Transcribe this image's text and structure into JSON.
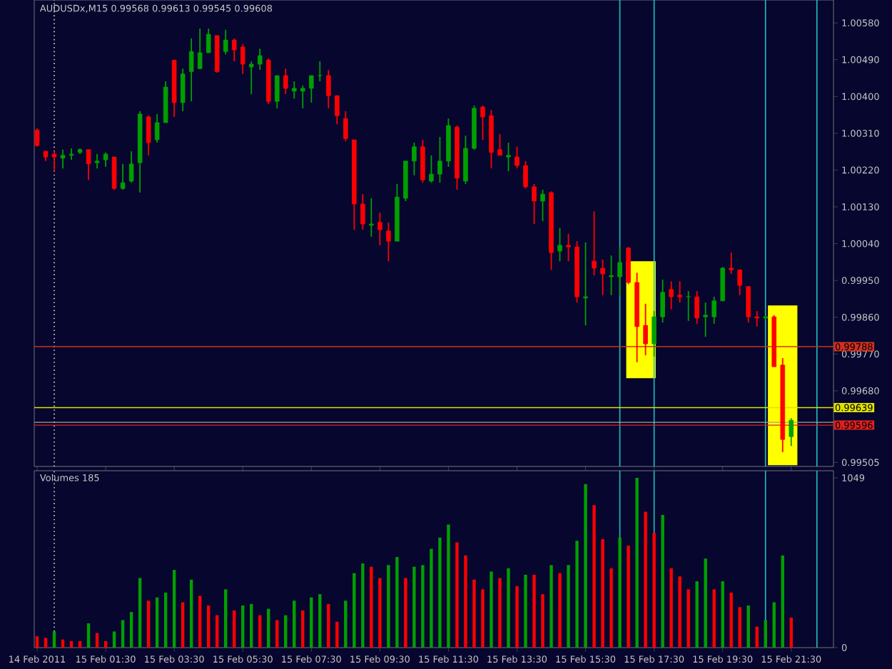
{
  "chart_data": [
    {
      "type": "candlestick",
      "title": "AUDUSDx,M15 0.99568 0.99613 0.99545 0.99608",
      "x": [
        "2011-02-14T23:30",
        "2011-02-14T23:45",
        "2011-02-15T00:00",
        "2011-02-15T00:15",
        "2011-02-15T00:30",
        "2011-02-15T00:45",
        "2011-02-15T01:00",
        "2011-02-15T01:15",
        "2011-02-15T01:30",
        "2011-02-15T01:45",
        "2011-02-15T02:00",
        "2011-02-15T02:15",
        "2011-02-15T02:30",
        "2011-02-15T02:45",
        "2011-02-15T03:00",
        "2011-02-15T03:15",
        "2011-02-15T03:30",
        "2011-02-15T03:45",
        "2011-02-15T04:00",
        "2011-02-15T04:15",
        "2011-02-15T04:30",
        "2011-02-15T04:45",
        "2011-02-15T05:00",
        "2011-02-15T05:15",
        "2011-02-15T05:30",
        "2011-02-15T05:45",
        "2011-02-15T06:00",
        "2011-02-15T06:15",
        "2011-02-15T06:30",
        "2011-02-15T06:45",
        "2011-02-15T07:00",
        "2011-02-15T07:15",
        "2011-02-15T07:30",
        "2011-02-15T07:45",
        "2011-02-15T08:00",
        "2011-02-15T08:15",
        "2011-02-15T08:30",
        "2011-02-15T08:45",
        "2011-02-15T09:00",
        "2011-02-15T09:15",
        "2011-02-15T09:30",
        "2011-02-15T09:45",
        "2011-02-15T10:00",
        "2011-02-15T10:15",
        "2011-02-15T10:30",
        "2011-02-15T10:45",
        "2011-02-15T11:00",
        "2011-02-15T11:15",
        "2011-02-15T11:30",
        "2011-02-15T11:45",
        "2011-02-15T12:00",
        "2011-02-15T12:15",
        "2011-02-15T12:30",
        "2011-02-15T12:45",
        "2011-02-15T13:00",
        "2011-02-15T13:15",
        "2011-02-15T13:30",
        "2011-02-15T13:45",
        "2011-02-15T14:00",
        "2011-02-15T14:15",
        "2011-02-15T14:30",
        "2011-02-15T14:45",
        "2011-02-15T15:00",
        "2011-02-15T15:15",
        "2011-02-15T15:30",
        "2011-02-15T15:45",
        "2011-02-15T16:00",
        "2011-02-15T16:15",
        "2011-02-15T16:30",
        "2011-02-15T16:45",
        "2011-02-15T17:00",
        "2011-02-15T17:15",
        "2011-02-15T17:30",
        "2011-02-15T17:45",
        "2011-02-15T18:00",
        "2011-02-15T18:15",
        "2011-02-15T18:30",
        "2011-02-15T18:45",
        "2011-02-15T19:00",
        "2011-02-15T19:15",
        "2011-02-15T19:30",
        "2011-02-15T19:45",
        "2011-02-15T20:00",
        "2011-02-15T20:15",
        "2011-02-15T20:30",
        "2011-02-15T20:45",
        "2011-02-15T21:00",
        "2011-02-15T21:15",
        "2011-02-15T21:30"
      ],
      "ohlc": [
        [
          1.00318,
          1.00322,
          1.00277,
          1.0028
        ],
        [
          1.00266,
          1.00266,
          1.00242,
          1.00252
        ],
        [
          1.00259,
          1.00266,
          1.00217,
          1.00252
        ],
        [
          1.00249,
          1.0027,
          1.00224,
          1.00256
        ],
        [
          1.00256,
          1.00273,
          1.00245,
          1.00259
        ],
        [
          1.00263,
          1.00273,
          1.00259,
          1.0027
        ],
        [
          1.0027,
          1.0027,
          1.00196,
          1.00235
        ],
        [
          1.00238,
          1.00259,
          1.00224,
          1.00242
        ],
        [
          1.00245,
          1.00263,
          1.00228,
          1.00259
        ],
        [
          1.00252,
          1.00252,
          1.00172,
          1.00175
        ],
        [
          1.00175,
          1.00235,
          1.00172,
          1.00189
        ],
        [
          1.00193,
          1.00266,
          1.00189,
          1.00235
        ],
        [
          1.00238,
          1.00364,
          1.00165,
          1.00357
        ],
        [
          1.0035,
          1.00353,
          1.00256,
          1.00287
        ],
        [
          1.00294,
          1.00357,
          1.00287,
          1.00336
        ],
        [
          1.00336,
          1.00437,
          1.00336,
          1.00423
        ],
        [
          1.00489,
          1.00489,
          1.0035,
          1.00385
        ],
        [
          1.00385,
          1.00468,
          1.00364,
          1.00455
        ],
        [
          1.00461,
          1.00542,
          1.00388,
          1.0051
        ],
        [
          1.00468,
          1.00566,
          1.00468,
          1.00507
        ],
        [
          1.00507,
          1.00566,
          1.00507,
          1.00552
        ],
        [
          1.00549,
          1.00549,
          1.00458,
          1.00461
        ],
        [
          1.0051,
          1.00563,
          1.00503,
          1.00538
        ],
        [
          1.00538,
          1.00542,
          1.00486,
          1.00514
        ],
        [
          1.00521,
          1.00528,
          1.00455,
          1.00479
        ],
        [
          1.00472,
          1.00486,
          1.00406,
          1.00479
        ],
        [
          1.00479,
          1.00517,
          1.00465,
          1.005
        ],
        [
          1.00489,
          1.00493,
          1.00381,
          1.00388
        ],
        [
          1.00388,
          1.00451,
          1.00371,
          1.00451
        ],
        [
          1.00451,
          1.00468,
          1.00406,
          1.0042
        ],
        [
          1.00413,
          1.00437,
          1.00395,
          1.0042
        ],
        [
          1.00413,
          1.00427,
          1.00371,
          1.0042
        ],
        [
          1.0042,
          1.00451,
          1.00385,
          1.00451
        ],
        [
          1.00451,
          1.00486,
          1.00437,
          1.00451
        ],
        [
          1.00451,
          1.00465,
          1.00371,
          1.00402
        ],
        [
          1.00402,
          1.00402,
          1.00332,
          1.00353
        ],
        [
          1.00346,
          1.00364,
          1.0029,
          1.00297
        ],
        [
          1.00294,
          1.00294,
          1.00074,
          1.00137
        ],
        [
          1.00137,
          1.00161,
          1.00074,
          1.00088
        ],
        [
          1.00085,
          1.00151,
          1.00057,
          1.00088
        ],
        [
          1.00092,
          1.00116,
          1.00036,
          1.00074
        ],
        [
          1.00071,
          1.00092,
          0.99997,
          1.00046
        ],
        [
          1.00046,
          1.00186,
          1.00046,
          1.00154
        ],
        [
          1.00151,
          1.00242,
          1.00144,
          1.00242
        ],
        [
          1.00242,
          1.00287,
          1.00207,
          1.00277
        ],
        [
          1.00277,
          1.00294,
          1.00189,
          1.00196
        ],
        [
          1.00193,
          1.00256,
          1.00189,
          1.0021
        ],
        [
          1.0021,
          1.00301,
          1.00189,
          1.00242
        ],
        [
          1.00242,
          1.00346,
          1.00228,
          1.00329
        ],
        [
          1.00325,
          1.00329,
          1.00172,
          1.002
        ],
        [
          1.00193,
          1.00304,
          1.00186,
          1.00273
        ],
        [
          1.00273,
          1.00378,
          1.0027,
          1.00371
        ],
        [
          1.00374,
          1.00378,
          1.00294,
          1.0035
        ],
        [
          1.00353,
          1.00367,
          1.00224,
          1.00263
        ],
        [
          1.0027,
          1.00308,
          1.00256,
          1.00256
        ],
        [
          1.00252,
          1.00287,
          1.00217,
          1.00256
        ],
        [
          1.00252,
          1.00277,
          1.00224,
          1.00231
        ],
        [
          1.00231,
          1.00242,
          1.00175,
          1.00179
        ],
        [
          1.00179,
          1.00186,
          1.00088,
          1.00144
        ],
        [
          1.00144,
          1.00172,
          1.00095,
          1.00161
        ],
        [
          1.00165,
          1.00168,
          0.99976,
          1.00018
        ],
        [
          1.00022,
          1.00078,
          0.99997,
          1.00036
        ],
        [
          1.00036,
          1.00064,
          0.99997,
          1.00032
        ],
        [
          1.00032,
          1.00046,
          0.99896,
          0.9991
        ],
        [
          0.99907,
          1.00043,
          0.9984,
          0.9991
        ],
        [
          0.99997,
          1.00119,
          0.99962,
          0.9998
        ],
        [
          0.9998,
          1.00001,
          0.99914,
          0.99966
        ],
        [
          0.99959,
          1.00011,
          0.99914,
          0.99962
        ],
        [
          0.99959,
          1.00032,
          0.99914,
          0.99994
        ],
        [
          1.00029,
          1.00032,
          0.99941,
          0.99945
        ],
        [
          0.99945,
          0.99969,
          0.9975,
          0.99837
        ],
        [
          0.9984,
          0.99893,
          0.99767,
          0.99795
        ],
        [
          0.99795,
          0.99875,
          0.99764,
          0.99861
        ],
        [
          0.99861,
          0.99952,
          0.99847,
          0.99921
        ],
        [
          0.99928,
          0.99948,
          0.99879,
          0.9991
        ],
        [
          0.99914,
          0.99948,
          0.99896,
          0.9991
        ],
        [
          0.9991,
          0.99924,
          0.99851,
          0.9991
        ],
        [
          0.9991,
          0.99924,
          0.99844,
          0.99858
        ],
        [
          0.99861,
          0.99896,
          0.99812,
          0.99865
        ],
        [
          0.99861,
          0.9991,
          0.99844,
          0.999
        ],
        [
          0.999,
          0.99983,
          0.999,
          0.9998
        ],
        [
          0.9998,
          1.00018,
          0.99966,
          0.99976
        ],
        [
          0.99976,
          0.99976,
          0.99914,
          0.99938
        ],
        [
          0.99935,
          0.99935,
          0.99847,
          0.99861
        ],
        [
          0.99861,
          0.99875,
          0.99837,
          0.99858
        ],
        [
          0.99858,
          0.99865,
          0.99854,
          0.99861
        ],
        [
          0.99861,
          0.99865,
          0.99739,
          0.99739
        ],
        [
          0.99743,
          0.9976,
          0.9953,
          0.99561
        ],
        [
          0.99568,
          0.99613,
          0.99545,
          0.99608
        ]
      ],
      "colors": [
        "#ff0000",
        "#ff0000",
        "#ff0000",
        "#00a000",
        "#00a000",
        "#00a000",
        "#ff0000",
        "#00a000",
        "#00a000",
        "#ff0000",
        "#00a000",
        "#00a000",
        "#00a000",
        "#ff0000",
        "#00a000",
        "#00a000",
        "#ff0000",
        "#00a000",
        "#00a000",
        "#00a000",
        "#00a000",
        "#ff0000",
        "#00a000",
        "#ff0000",
        "#ff0000",
        "#00a000",
        "#00a000",
        "#ff0000",
        "#00a000",
        "#ff0000",
        "#00a000",
        "#00a000",
        "#00a000",
        "#00a000",
        "#ff0000",
        "#ff0000",
        "#ff0000",
        "#ff0000",
        "#ff0000",
        "#00a000",
        "#ff0000",
        "#ff0000",
        "#00a000",
        "#00a000",
        "#00a000",
        "#ff0000",
        "#00a000",
        "#00a000",
        "#00a000",
        "#ff0000",
        "#00a000",
        "#00a000",
        "#ff0000",
        "#ff0000",
        "#ff0000",
        "#00a000",
        "#ff0000",
        "#ff0000",
        "#ff0000",
        "#00a000",
        "#ff0000",
        "#00a000",
        "#ff0000",
        "#ff0000",
        "#00a000",
        "#ff0000",
        "#ff0000",
        "#00a000",
        "#00a000",
        "#ff0000",
        "#ff0000",
        "#ff0000",
        "#00a000",
        "#00a000",
        "#ff0000",
        "#ff0000",
        "#00a000",
        "#ff0000",
        "#00a000",
        "#00a000",
        "#00a000",
        "#ff0000",
        "#ff0000",
        "#ff0000",
        "#ff0000",
        "#00a000",
        "#ff0000",
        "#ff0000",
        "#00a000"
      ],
      "series": [
        {
          "type": "bar",
          "x": [
            "2011-02-15T17:07",
            "2011-02-15T21:15"
          ],
          "base": [
            0.99711,
            0.99498
          ],
          "values": [
            0.00286,
            0.00391
          ],
          "color": "#ffff00"
        }
      ],
      "xlim": [
        "2011-02-14T23:25",
        "2011-02-15T22:44"
      ],
      "xticks": [
        {
          "value": "2011-02-14T23:30",
          "label": null
        },
        {
          "value": "2011-02-15T01:30",
          "label": null
        },
        {
          "value": "2011-02-15T03:30",
          "label": null
        },
        {
          "value": "2011-02-15T05:30",
          "label": null
        },
        {
          "value": "2011-02-15T07:30",
          "label": null
        },
        {
          "value": "2011-02-15T09:30",
          "label": null
        },
        {
          "value": "2011-02-15T11:30",
          "label": null
        },
        {
          "value": "2011-02-15T13:30",
          "label": null
        },
        {
          "value": "2011-02-15T15:30",
          "label": null
        },
        {
          "value": "2011-02-15T17:30",
          "label": null
        },
        {
          "value": "2011-02-15T19:30",
          "label": null
        },
        {
          "value": "2011-02-15T21:30",
          "label": null
        }
      ],
      "ylim": [
        0.99495,
        1.00636
      ],
      "yticks": [
        {
          "value": 1.0058,
          "label": "1.00580"
        },
        {
          "value": 1.0049,
          "label": "1.00490"
        },
        {
          "value": 1.004,
          "label": "1.00400"
        },
        {
          "value": 1.0031,
          "label": "1.00310"
        },
        {
          "value": 1.0022,
          "label": "1.00220"
        },
        {
          "value": 1.0013,
          "label": "1.00130"
        },
        {
          "value": 1.0004,
          "label": "1.00040"
        },
        {
          "value": 0.9995,
          "label": "0.99950"
        },
        {
          "value": 0.9986,
          "label": "0.99860"
        },
        {
          "value": 0.9977,
          "label": "0.99770"
        },
        {
          "value": 0.9968,
          "label": "0.99680"
        },
        0.99505
      ],
      "tick_labels": "y",
      "ref_lines": [
        {
          "axis": "x",
          "value": "2011-02-15T00:00",
          "color": "#e0e0c0",
          "line_style": "dotted"
        },
        {
          "axis": "x",
          "value": "2011-02-15T16:30",
          "color": "#20c0c0"
        },
        {
          "axis": "x",
          "value": "2011-02-15T17:30",
          "color": "#20c0c0"
        },
        {
          "axis": "x",
          "value": "2011-02-15T20:45",
          "color": "#20c0c0"
        },
        {
          "axis": "x",
          "value": "2011-02-15T22:15",
          "color": "#20c0c0"
        },
        {
          "axis": "y",
          "value": 0.99788,
          "label": "0.99788",
          "color": "#d03020"
        },
        {
          "axis": "y",
          "value": 0.99639,
          "label": "0.99639",
          "color": "#e0e000"
        },
        {
          "axis": "y",
          "value": 0.99603,
          "color": "#a0a0a0"
        },
        {
          "axis": "y",
          "value": 0.99596,
          "label": "0.99596",
          "color": "#e02020"
        }
      ]
    },
    {
      "type": "bar",
      "title": "Volumes 185",
      "x": [
        "2011-02-14T23:30",
        "2011-02-14T23:45",
        "2011-02-15T00:00",
        "2011-02-15T00:15",
        "2011-02-15T00:30",
        "2011-02-15T00:45",
        "2011-02-15T01:00",
        "2011-02-15T01:15",
        "2011-02-15T01:30",
        "2011-02-15T01:45",
        "2011-02-15T02:00",
        "2011-02-15T02:15",
        "2011-02-15T02:30",
        "2011-02-15T02:45",
        "2011-02-15T03:00",
        "2011-02-15T03:15",
        "2011-02-15T03:30",
        "2011-02-15T03:45",
        "2011-02-15T04:00",
        "2011-02-15T04:15",
        "2011-02-15T04:30",
        "2011-02-15T04:45",
        "2011-02-15T05:00",
        "2011-02-15T05:15",
        "2011-02-15T05:30",
        "2011-02-15T05:45",
        "2011-02-15T06:00",
        "2011-02-15T06:15",
        "2011-02-15T06:30",
        "2011-02-15T06:45",
        "2011-02-15T07:00",
        "2011-02-15T07:15",
        "2011-02-15T07:30",
        "2011-02-15T07:45",
        "2011-02-15T08:00",
        "2011-02-15T08:15",
        "2011-02-15T08:30",
        "2011-02-15T08:45",
        "2011-02-15T09:00",
        "2011-02-15T09:15",
        "2011-02-15T09:30",
        "2011-02-15T09:45",
        "2011-02-15T10:00",
        "2011-02-15T10:15",
        "2011-02-15T10:30",
        "2011-02-15T10:45",
        "2011-02-15T11:00",
        "2011-02-15T11:15",
        "2011-02-15T11:30",
        "2011-02-15T11:45",
        "2011-02-15T12:00",
        "2011-02-15T12:15",
        "2011-02-15T12:30",
        "2011-02-15T12:45",
        "2011-02-15T13:00",
        "2011-02-15T13:15",
        "2011-02-15T13:30",
        "2011-02-15T13:45",
        "2011-02-15T14:00",
        "2011-02-15T14:15",
        "2011-02-15T14:30",
        "2011-02-15T14:45",
        "2011-02-15T15:00",
        "2011-02-15T15:15",
        "2011-02-15T15:30",
        "2011-02-15T15:45",
        "2011-02-15T16:00",
        "2011-02-15T16:15",
        "2011-02-15T16:30",
        "2011-02-15T16:45",
        "2011-02-15T17:00",
        "2011-02-15T17:15",
        "2011-02-15T17:30",
        "2011-02-15T17:45",
        "2011-02-15T18:00",
        "2011-02-15T18:15",
        "2011-02-15T18:30",
        "2011-02-15T18:45",
        "2011-02-15T19:00",
        "2011-02-15T19:15",
        "2011-02-15T19:30",
        "2011-02-15T19:45",
        "2011-02-15T20:00",
        "2011-02-15T20:15",
        "2011-02-15T20:30",
        "2011-02-15T20:45",
        "2011-02-15T21:00",
        "2011-02-15T21:15",
        "2011-02-15T21:30"
      ],
      "values": [
        70,
        60,
        100,
        50,
        40,
        40,
        150,
        90,
        40,
        100,
        170,
        220,
        430,
        290,
        310,
        340,
        480,
        280,
        420,
        320,
        260,
        200,
        360,
        230,
        260,
        270,
        200,
        240,
        170,
        200,
        290,
        230,
        310,
        330,
        270,
        160,
        290,
        460,
        520,
        500,
        430,
        510,
        560,
        430,
        500,
        510,
        610,
        680,
        760,
        650,
        570,
        420,
        360,
        470,
        430,
        490,
        380,
        450,
        450,
        330,
        510,
        460,
        510,
        660,
        1010,
        880,
        670,
        490,
        680,
        630,
        1049,
        840,
        710,
        820,
        490,
        440,
        360,
        410,
        550,
        360,
        410,
        340,
        250,
        260,
        130,
        170,
        280,
        570,
        185
      ],
      "colors": [
        "#ff0000",
        "#ff0000",
        "#00a000",
        "#ff0000",
        "#ff0000",
        "#ff0000",
        "#00a000",
        "#ff0000",
        "#ff0000",
        "#00a000",
        "#00a000",
        "#00a000",
        "#00a000",
        "#ff0000",
        "#00a000",
        "#00a000",
        "#00a000",
        "#ff0000",
        "#00a000",
        "#ff0000",
        "#ff0000",
        "#ff0000",
        "#00a000",
        "#ff0000",
        "#00a000",
        "#00a000",
        "#ff0000",
        "#00a000",
        "#ff0000",
        "#00a000",
        "#00a000",
        "#ff0000",
        "#00a000",
        "#00a000",
        "#ff0000",
        "#ff0000",
        "#00a000",
        "#00a000",
        "#00a000",
        "#ff0000",
        "#ff0000",
        "#00a000",
        "#00a000",
        "#ff0000",
        "#00a000",
        "#00a000",
        "#00a000",
        "#00a000",
        "#00a000",
        "#ff0000",
        "#ff0000",
        "#ff0000",
        "#ff0000",
        "#00a000",
        "#ff0000",
        "#00a000",
        "#ff0000",
        "#00a000",
        "#ff0000",
        "#ff0000",
        "#00a000",
        "#ff0000",
        "#00a000",
        "#00a000",
        "#00a000",
        "#ff0000",
        "#ff0000",
        "#ff0000",
        "#00a000",
        "#ff0000",
        "#00a000",
        "#ff0000",
        "#ff0000",
        "#00a000",
        "#ff0000",
        "#ff0000",
        "#ff0000",
        "#00a000",
        "#00a000",
        "#ff0000",
        "#00a000",
        "#ff0000",
        "#ff0000",
        "#00a000",
        "#ff0000",
        "#00a000",
        "#00a000",
        "#00a000",
        "#ff0000"
      ],
      "xlim": [
        "2011-02-14T23:25",
        "2011-02-15T22:44"
      ],
      "xticks": [
        {
          "value": "2011-02-14T23:30",
          "label": "14 Feb 2011"
        },
        {
          "value": "2011-02-15T01:30",
          "label": "15 Feb 01:30"
        },
        {
          "value": "2011-02-15T03:30",
          "label": "15 Feb 03:30"
        },
        {
          "value": "2011-02-15T05:30",
          "label": "15 Feb 05:30"
        },
        {
          "value": "2011-02-15T07:30",
          "label": "15 Feb 07:30"
        },
        {
          "value": "2011-02-15T09:30",
          "label": "15 Feb 09:30"
        },
        {
          "value": "2011-02-15T11:30",
          "label": "15 Feb 11:30"
        },
        {
          "value": "2011-02-15T13:30",
          "label": "15 Feb 13:30"
        },
        {
          "value": "2011-02-15T15:30",
          "label": "15 Feb 15:30"
        },
        {
          "value": "2011-02-15T17:30",
          "label": "15 Feb 17:30"
        },
        {
          "value": "2011-02-15T19:30",
          "label": "15 Feb 19:30"
        },
        {
          "value": "2011-02-15T21:30",
          "label": "15 Feb 21:30"
        }
      ],
      "ylim": [
        0,
        1093
      ],
      "yticks": [
        0,
        1049
      ],
      "ref_lines": [
        {
          "axis": "x",
          "value": "2011-02-15T00:00",
          "color": "#e0e0c0",
          "line_style": "dotted"
        },
        {
          "axis": "x",
          "value": "2011-02-15T16:30",
          "color": "#20c0c0"
        },
        {
          "axis": "x",
          "value": "2011-02-15T17:30",
          "color": "#20c0c0"
        },
        {
          "axis": "x",
          "value": "2011-02-15T20:45",
          "color": "#20c0c0"
        },
        {
          "axis": "x",
          "value": "2011-02-15T22:15",
          "color": "#20c0c0"
        }
      ]
    }
  ]
}
